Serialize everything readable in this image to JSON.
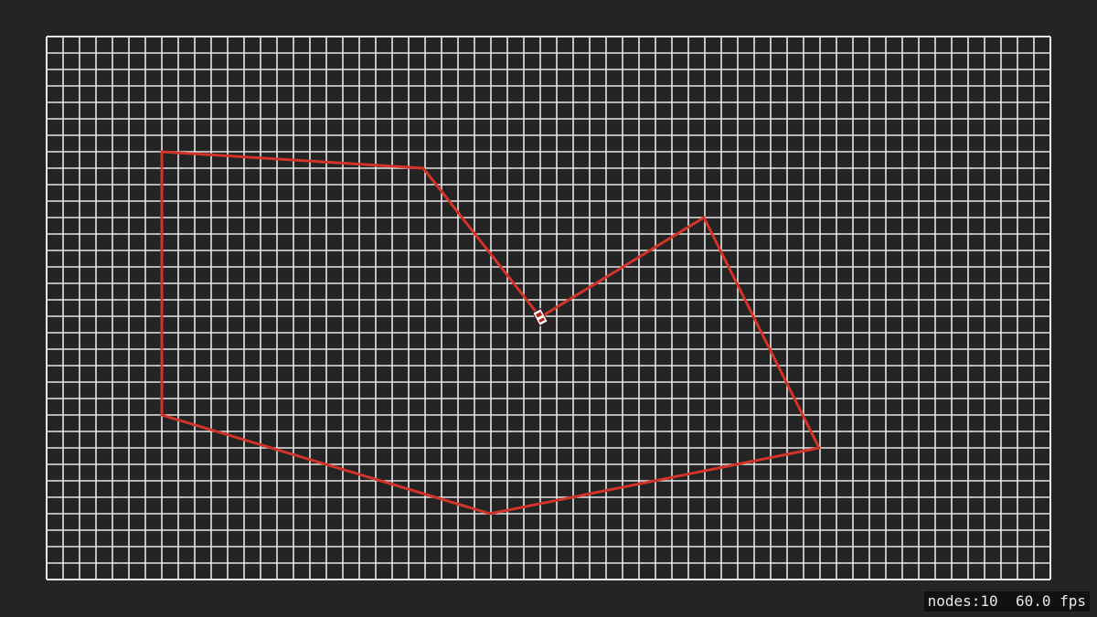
{
  "colors": {
    "background": "#242424",
    "grid_line": "#e6e6e6",
    "track_line": "#d2342a",
    "car_body": "#ffffff",
    "car_detail": "#b02020"
  },
  "stats": {
    "nodes_label": "nodes:10",
    "fps_label": "60.0 fps"
  }
}
